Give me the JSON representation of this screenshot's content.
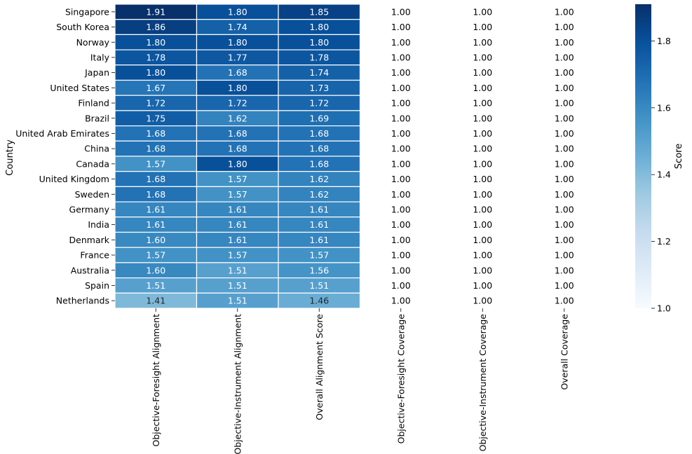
{
  "chart_data": {
    "type": "heatmap",
    "title": "",
    "ylabel": "Country",
    "xlabel": "",
    "colorbar_label": "Score",
    "color_range": [
      1.0,
      1.91
    ],
    "colorbar_ticks": [
      "1.0",
      "1.2",
      "1.4",
      "1.6",
      "1.8"
    ],
    "colormap": "Blues",
    "colormap_colors": [
      "#f7fbff",
      "#deebf7",
      "#c6dbef",
      "#9ecae1",
      "#6baed6",
      "#4292c6",
      "#2171b5",
      "#08519c",
      "#08306b"
    ],
    "rows": [
      "Singapore",
      "South Korea",
      "Norway",
      "Italy",
      "Japan",
      "United States",
      "Finland",
      "Brazil",
      "United Arab Emirates",
      "China",
      "Canada",
      "United Kingdom",
      "Sweden",
      "Germany",
      "India",
      "Denmark",
      "France",
      "Australia",
      "Spain",
      "Netherlands"
    ],
    "columns": [
      "Objective-Foresight Alignment",
      "Objective-Instrument Alignment",
      "Overall Alignment Score",
      "Objective-Foresight Coverage",
      "Objective-Instrument Coverage",
      "Overall Coverage"
    ],
    "colored_columns": [
      0,
      1,
      2
    ],
    "values": [
      [
        "1.91",
        "1.80",
        "1.85",
        "1.00",
        "1.00",
        "1.00"
      ],
      [
        "1.86",
        "1.74",
        "1.80",
        "1.00",
        "1.00",
        "1.00"
      ],
      [
        "1.80",
        "1.80",
        "1.80",
        "1.00",
        "1.00",
        "1.00"
      ],
      [
        "1.78",
        "1.77",
        "1.78",
        "1.00",
        "1.00",
        "1.00"
      ],
      [
        "1.80",
        "1.68",
        "1.74",
        "1.00",
        "1.00",
        "1.00"
      ],
      [
        "1.67",
        "1.80",
        "1.73",
        "1.00",
        "1.00",
        "1.00"
      ],
      [
        "1.72",
        "1.72",
        "1.72",
        "1.00",
        "1.00",
        "1.00"
      ],
      [
        "1.75",
        "1.62",
        "1.69",
        "1.00",
        "1.00",
        "1.00"
      ],
      [
        "1.68",
        "1.68",
        "1.68",
        "1.00",
        "1.00",
        "1.00"
      ],
      [
        "1.68",
        "1.68",
        "1.68",
        "1.00",
        "1.00",
        "1.00"
      ],
      [
        "1.57",
        "1.80",
        "1.68",
        "1.00",
        "1.00",
        "1.00"
      ],
      [
        "1.68",
        "1.57",
        "1.62",
        "1.00",
        "1.00",
        "1.00"
      ],
      [
        "1.68",
        "1.57",
        "1.62",
        "1.00",
        "1.00",
        "1.00"
      ],
      [
        "1.61",
        "1.61",
        "1.61",
        "1.00",
        "1.00",
        "1.00"
      ],
      [
        "1.61",
        "1.61",
        "1.61",
        "1.00",
        "1.00",
        "1.00"
      ],
      [
        "1.60",
        "1.61",
        "1.61",
        "1.00",
        "1.00",
        "1.00"
      ],
      [
        "1.57",
        "1.57",
        "1.57",
        "1.00",
        "1.00",
        "1.00"
      ],
      [
        "1.60",
        "1.51",
        "1.56",
        "1.00",
        "1.00",
        "1.00"
      ],
      [
        "1.51",
        "1.51",
        "1.51",
        "1.00",
        "1.00",
        "1.00"
      ],
      [
        "1.41",
        "1.51",
        "1.46",
        "1.00",
        "1.00",
        "1.00"
      ]
    ]
  }
}
